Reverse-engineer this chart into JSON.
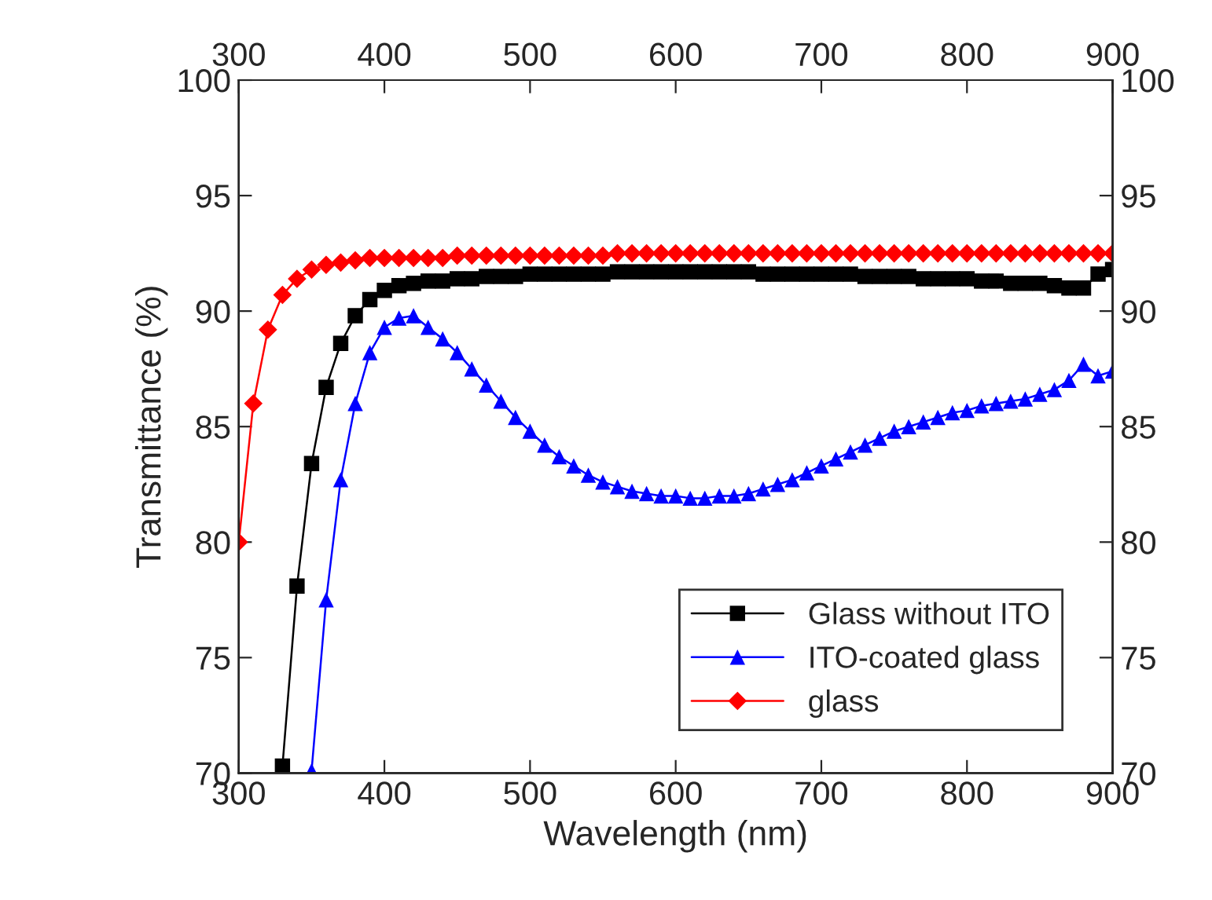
{
  "chart_data": {
    "type": "line",
    "xlabel": "Wavelength (nm)",
    "ylabel": "Transmittance (%)",
    "xlim": [
      300,
      900
    ],
    "xticks": [
      300,
      400,
      500,
      600,
      700,
      800,
      900
    ],
    "x2lim": [
      300,
      900
    ],
    "x2ticks": [
      300,
      400,
      500,
      600,
      700,
      800,
      900
    ],
    "ylim": [
      70,
      100
    ],
    "yticks": [
      70,
      75,
      80,
      85,
      90,
      95,
      100
    ],
    "y2lim": [
      70,
      100
    ],
    "y2ticks": [
      70,
      75,
      80,
      85,
      90,
      95,
      100
    ],
    "grid": false,
    "legend": "bottom right",
    "line_style": "solid",
    "series": [
      {
        "name": "Glass without ITO",
        "color": "#000000",
        "marker": "square",
        "x": [
          330,
          340,
          350,
          360,
          370,
          380,
          390,
          400,
          410,
          420,
          430,
          440,
          450,
          460,
          470,
          480,
          490,
          500,
          510,
          520,
          530,
          540,
          550,
          560,
          570,
          580,
          590,
          600,
          610,
          620,
          630,
          640,
          650,
          660,
          670,
          680,
          690,
          700,
          710,
          720,
          730,
          740,
          750,
          760,
          770,
          780,
          790,
          800,
          810,
          820,
          830,
          840,
          850,
          860,
          870,
          880,
          890,
          900
        ],
        "values": [
          70.3,
          78.1,
          83.4,
          86.7,
          88.6,
          89.8,
          90.5,
          90.9,
          91.1,
          91.2,
          91.3,
          91.3,
          91.4,
          91.4,
          91.5,
          91.5,
          91.5,
          91.6,
          91.6,
          91.6,
          91.6,
          91.6,
          91.6,
          91.7,
          91.7,
          91.7,
          91.7,
          91.7,
          91.7,
          91.7,
          91.7,
          91.7,
          91.7,
          91.6,
          91.6,
          91.6,
          91.6,
          91.6,
          91.6,
          91.6,
          91.5,
          91.5,
          91.5,
          91.5,
          91.4,
          91.4,
          91.4,
          91.4,
          91.3,
          91.3,
          91.2,
          91.2,
          91.2,
          91.1,
          91.0,
          91.0,
          91.6,
          91.8
        ]
      },
      {
        "name": "ITO-coated glass",
        "color": "#0000ff",
        "marker": "triangle",
        "x": [
          350,
          360,
          370,
          380,
          390,
          400,
          410,
          420,
          430,
          440,
          450,
          460,
          470,
          480,
          490,
          500,
          510,
          520,
          530,
          540,
          550,
          560,
          570,
          580,
          590,
          600,
          610,
          620,
          630,
          640,
          650,
          660,
          670,
          680,
          690,
          700,
          710,
          720,
          730,
          740,
          750,
          760,
          770,
          780,
          790,
          800,
          810,
          820,
          830,
          840,
          850,
          860,
          870,
          880,
          890,
          900
        ],
        "values": [
          70.1,
          77.5,
          82.7,
          86.0,
          88.2,
          89.3,
          89.7,
          89.8,
          89.3,
          88.8,
          88.2,
          87.5,
          86.8,
          86.1,
          85.4,
          84.8,
          84.2,
          83.7,
          83.3,
          82.9,
          82.6,
          82.4,
          82.2,
          82.1,
          82.0,
          82.0,
          81.9,
          81.9,
          82.0,
          82.0,
          82.1,
          82.3,
          82.5,
          82.7,
          83.0,
          83.3,
          83.6,
          83.9,
          84.2,
          84.5,
          84.8,
          85.0,
          85.2,
          85.4,
          85.6,
          85.7,
          85.9,
          86.0,
          86.1,
          86.2,
          86.4,
          86.6,
          87.0,
          87.7,
          87.2,
          87.4
        ]
      },
      {
        "name": "glass",
        "color": "#ff0000",
        "marker": "diamond",
        "x": [
          300,
          310,
          320,
          330,
          340,
          350,
          360,
          370,
          380,
          390,
          400,
          410,
          420,
          430,
          440,
          450,
          460,
          470,
          480,
          490,
          500,
          510,
          520,
          530,
          540,
          550,
          560,
          570,
          580,
          590,
          600,
          610,
          620,
          630,
          640,
          650,
          660,
          670,
          680,
          690,
          700,
          710,
          720,
          730,
          740,
          750,
          760,
          770,
          780,
          790,
          800,
          810,
          820,
          830,
          840,
          850,
          860,
          870,
          880,
          890,
          900
        ],
        "values": [
          80,
          86,
          89.2,
          90.7,
          91.4,
          91.8,
          92.0,
          92.1,
          92.2,
          92.3,
          92.3,
          92.3,
          92.3,
          92.3,
          92.3,
          92.4,
          92.4,
          92.4,
          92.4,
          92.4,
          92.4,
          92.4,
          92.4,
          92.4,
          92.4,
          92.4,
          92.5,
          92.5,
          92.5,
          92.5,
          92.5,
          92.5,
          92.5,
          92.5,
          92.5,
          92.5,
          92.5,
          92.5,
          92.5,
          92.5,
          92.5,
          92.5,
          92.5,
          92.5,
          92.5,
          92.5,
          92.5,
          92.5,
          92.5,
          92.5,
          92.5,
          92.5,
          92.5,
          92.5,
          92.5,
          92.5,
          92.5,
          92.5,
          92.5,
          92.5,
          92.5
        ]
      }
    ]
  }
}
